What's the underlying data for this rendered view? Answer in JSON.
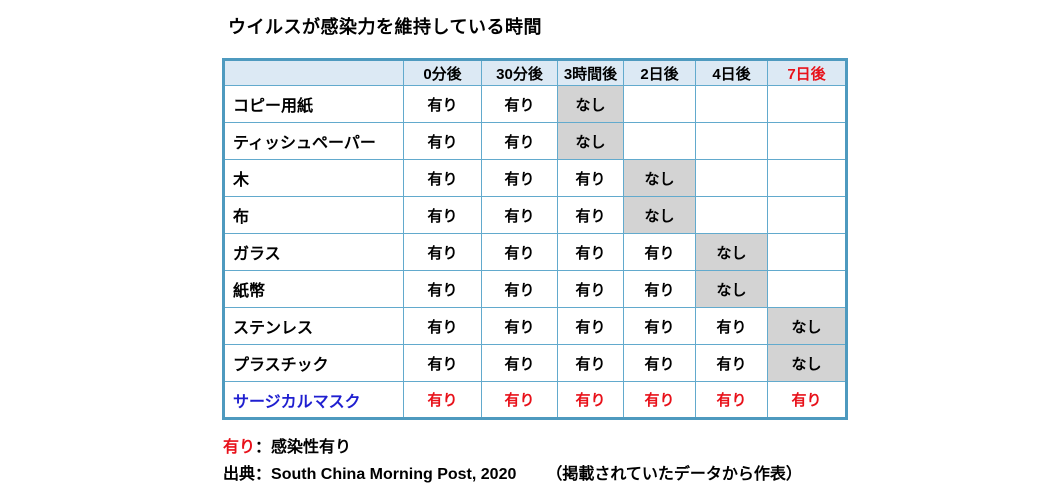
{
  "title": "ウイルスが感染力を維持している時間",
  "table": {
    "columns": [
      {
        "label": "",
        "accent": false
      },
      {
        "label": "0分後",
        "accent": false
      },
      {
        "label": "30分後",
        "accent": false
      },
      {
        "label": "3時間後",
        "accent": false
      },
      {
        "label": "2日後",
        "accent": false
      },
      {
        "label": "4日後",
        "accent": false
      },
      {
        "label": "7日後",
        "accent": true
      }
    ],
    "rows": [
      {
        "label": "コピー用紙",
        "cells": [
          "有り",
          "有り",
          "なし",
          "",
          "",
          ""
        ],
        "label_accent": false,
        "values_accent": false
      },
      {
        "label": "ティッシュペーパー",
        "cells": [
          "有り",
          "有り",
          "なし",
          "",
          "",
          ""
        ],
        "label_accent": false,
        "values_accent": false
      },
      {
        "label": "木",
        "cells": [
          "有り",
          "有り",
          "有り",
          "なし",
          "",
          ""
        ],
        "label_accent": false,
        "values_accent": false
      },
      {
        "label": "布",
        "cells": [
          "有り",
          "有り",
          "有り",
          "なし",
          "",
          ""
        ],
        "label_accent": false,
        "values_accent": false
      },
      {
        "label": "ガラス",
        "cells": [
          "有り",
          "有り",
          "有り",
          "有り",
          "なし",
          ""
        ],
        "label_accent": false,
        "values_accent": false
      },
      {
        "label": "紙幣",
        "cells": [
          "有り",
          "有り",
          "有り",
          "有り",
          "なし",
          ""
        ],
        "label_accent": false,
        "values_accent": false
      },
      {
        "label": "ステンレス",
        "cells": [
          "有り",
          "有り",
          "有り",
          "有り",
          "有り",
          "なし"
        ],
        "label_accent": false,
        "values_accent": false
      },
      {
        "label": "プラスチック",
        "cells": [
          "有り",
          "有り",
          "有り",
          "有り",
          "有り",
          "なし"
        ],
        "label_accent": false,
        "values_accent": false
      },
      {
        "label": "サージカルマスク",
        "cells": [
          "有り",
          "有り",
          "有り",
          "有り",
          "有り",
          "有り"
        ],
        "label_accent": true,
        "values_accent": true
      }
    ],
    "present_text": "有り",
    "absent_text": "なし"
  },
  "legend": {
    "key": "有り",
    "rest": "：感染性有り"
  },
  "source": {
    "label": "出典：",
    "text": "South China Morning Post, 2020",
    "note": "（掲載されていたデータから作表）"
  },
  "colors": {
    "outer_border": "#4e9abf",
    "grid_line": "#62aacd",
    "header_fill": "#dce9f4",
    "absent_cell_fill": "#d3d3d3",
    "accent_red": "#e8111a",
    "accent_blue": "#1f1fd0",
    "text": "#000000",
    "background": "#ffffff"
  },
  "chart_data": {
    "type": "table",
    "title": "ウイルスが感染力を維持している時間",
    "columns": [
      "",
      "0分後",
      "30分後",
      "3時間後",
      "2日後",
      "4日後",
      "7日後"
    ],
    "rows": [
      [
        "コピー用紙",
        "有り",
        "有り",
        "なし",
        "",
        "",
        ""
      ],
      [
        "ティッシュペーパー",
        "有り",
        "有り",
        "なし",
        "",
        "",
        ""
      ],
      [
        "木",
        "有り",
        "有り",
        "有り",
        "なし",
        "",
        ""
      ],
      [
        "布",
        "有り",
        "有り",
        "有り",
        "なし",
        "",
        ""
      ],
      [
        "ガラス",
        "有り",
        "有り",
        "有り",
        "有り",
        "なし",
        ""
      ],
      [
        "紙幣",
        "有り",
        "有り",
        "有り",
        "有り",
        "なし",
        ""
      ],
      [
        "ステンレス",
        "有り",
        "有り",
        "有り",
        "有り",
        "有り",
        "なし"
      ],
      [
        "プラスチック",
        "有り",
        "有り",
        "有り",
        "有り",
        "有り",
        "なし"
      ],
      [
        "サージカルマスク",
        "有り",
        "有り",
        "有り",
        "有り",
        "有り",
        "有り"
      ]
    ],
    "legend": "有り：感染性有り",
    "source": "出典：South China Morning Post, 2020　（掲載されていたデータから作表）",
    "layout_hints": {
      "absent_cells_shaded_gray": true,
      "last_column_header_red": true,
      "last_row_label_blue_values_red": true,
      "grid": true
    }
  }
}
